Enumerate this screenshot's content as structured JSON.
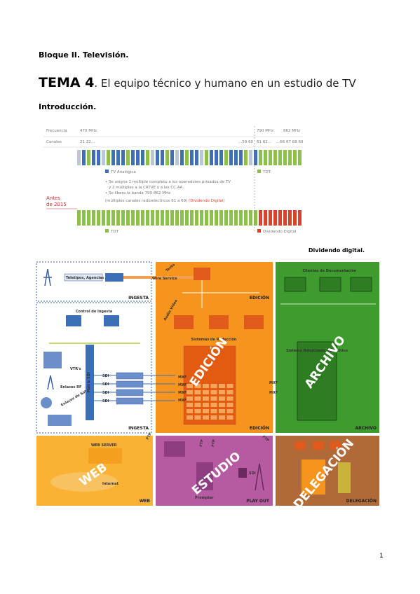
{
  "header": {
    "block": "Bloque II. Televisión.",
    "topic_number": "TEMA 4",
    "topic_title": ". El equipo técnico y humano en un estudio de TV",
    "section": "Introducción."
  },
  "figure1": {
    "row_labels": [
      "Frecuencia",
      "Canales"
    ],
    "frequencies": [
      "470 MHz",
      "790 MHz",
      "862 MHz"
    ],
    "channels": [
      "21 22...",
      "...59 60",
      "61 62...",
      "...66 67 68 69"
    ],
    "legend_top": [
      "TV Analógica",
      "TDT"
    ],
    "bullets": [
      "• Se asigna 1 múltiple completo a los operadores privados de TV",
      "y 2 múltiples a la CRTVE y a las CC.AA.",
      "• Se libera la banda 790-862 MHz",
      "(múltiples canales radioeléctricos 61 a 69)"
    ],
    "dividend_note": "(Dividendo Digital)",
    "before_label": [
      "Antes",
      "de 2015"
    ],
    "legend_bottom": [
      "TDT",
      "Dividendo Digital"
    ],
    "caption": "Dividendo digital."
  },
  "figure2": {
    "ingest_top": [
      "Teletipos, Agencias",
      "Wire Service",
      "INGESTA"
    ],
    "edition_top": [
      "Texto",
      "EDICIÓN",
      "Audio Vídeo",
      "Sistemas de Redacción"
    ],
    "archive_top": [
      "Clientes de Documentación",
      "Sistema Robotizado de Archivo"
    ],
    "ingest": [
      "Control de Ingesta",
      "VTR's",
      "Enlaces RF",
      "Enlaces de Satélite",
      "Matriz SDI",
      "INGESTA"
    ],
    "sdi": [
      "SDI",
      "SDI",
      "SDI",
      "SDI"
    ],
    "mxf": [
      "MXF",
      "MXF",
      "MXF",
      "MXF",
      "MXF",
      "MXF"
    ],
    "big_labels": [
      "EDICIÓN",
      "ARCHIVO",
      "WEB",
      "ESTUDIO",
      "DELEGACIÓN"
    ],
    "section_labels": [
      "EDICIÓN",
      "ARCHIVO",
      "WEB",
      "PLAY OUT",
      "DELEGACIÓN"
    ],
    "web": [
      "WEB SERVER",
      "Internet"
    ],
    "studio": [
      "SDI",
      "Prompter"
    ],
    "ftp": [
      "FTP",
      "FTP",
      "FTP",
      "FTP"
    ]
  },
  "page_number": "1"
}
